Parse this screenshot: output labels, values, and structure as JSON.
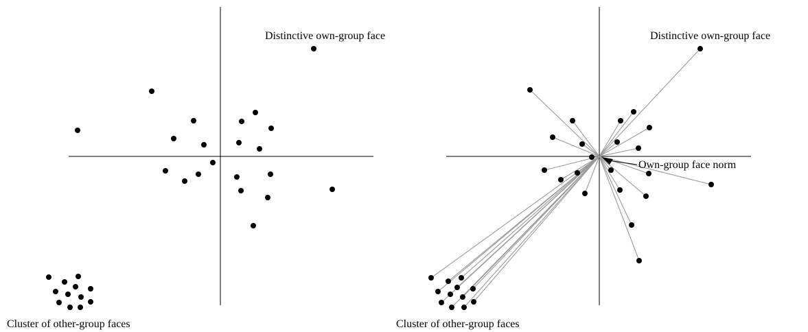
{
  "panels": [
    {
      "id": "left",
      "labels": {
        "distinctive": "Distinctive own-group face",
        "cluster": "Cluster of other-group faces"
      },
      "points": [
        [
          457,
          71
        ],
        [
          221,
          133
        ],
        [
          113,
          190
        ],
        [
          282,
          176
        ],
        [
          372,
          164
        ],
        [
          352,
          177
        ],
        [
          395,
          187
        ],
        [
          253,
          202
        ],
        [
          297,
          211
        ],
        [
          348,
          208
        ],
        [
          378,
          217
        ],
        [
          310,
          237
        ],
        [
          241,
          249
        ],
        [
          289,
          254
        ],
        [
          269,
          264
        ],
        [
          345,
          258
        ],
        [
          394,
          254
        ],
        [
          484,
          276
        ],
        [
          351,
          278
        ],
        [
          390,
          288
        ],
        [
          369,
          329
        ],
        [
          71,
          404
        ],
        [
          94,
          411
        ],
        [
          114,
          403
        ],
        [
          81,
          425
        ],
        [
          110,
          418
        ],
        [
          132,
          421
        ],
        [
          99,
          429
        ],
        [
          118,
          433
        ],
        [
          86,
          441
        ],
        [
          102,
          448
        ],
        [
          117,
          448
        ],
        [
          132,
          440
        ]
      ]
    },
    {
      "id": "right",
      "labels": {
        "distinctive": "Distinctive own-group face",
        "norm": "Own-group face norm",
        "cluster": "Cluster of other-group faces"
      },
      "points": [
        [
          1020,
          71
        ],
        [
          772,
          131
        ],
        [
          834,
          176
        ],
        [
          904,
          176
        ],
        [
          923,
          163
        ],
        [
          946,
          186
        ],
        [
          805,
          200
        ],
        [
          848,
          210
        ],
        [
          899,
          207
        ],
        [
          930,
          216
        ],
        [
          862,
          229
        ],
        [
          793,
          248
        ],
        [
          841,
          252
        ],
        [
          817,
          262
        ],
        [
          890,
          248
        ],
        [
          945,
          253
        ],
        [
          1036,
          269
        ],
        [
          903,
          277
        ],
        [
          941,
          286
        ],
        [
          852,
          282
        ],
        [
          920,
          328
        ],
        [
          931,
          380
        ],
        [
          628,
          405
        ],
        [
          653,
          410
        ],
        [
          672,
          405
        ],
        [
          638,
          425
        ],
        [
          666,
          419
        ],
        [
          689,
          421
        ],
        [
          656,
          429
        ],
        [
          674,
          433
        ],
        [
          643,
          441
        ],
        [
          658,
          448
        ],
        [
          676,
          448
        ],
        [
          690,
          440
        ]
      ]
    }
  ],
  "colors": {
    "dot": "#000000",
    "axis": "#000000",
    "ray": "#9a9a9a"
  }
}
